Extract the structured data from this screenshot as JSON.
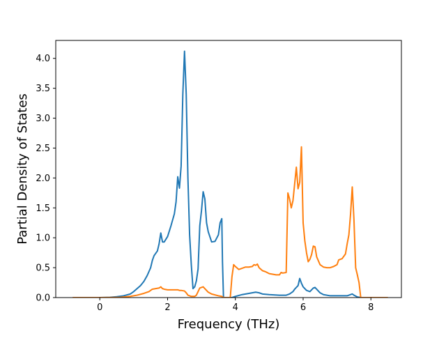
{
  "chart_data": {
    "type": "line",
    "title": "",
    "xlabel": "Frequency (THz)",
    "ylabel": "Partial Density of States",
    "xlim": [
      -1.3,
      8.9
    ],
    "ylim": [
      0,
      4.3
    ],
    "xticks": [
      0,
      2,
      4,
      6,
      8
    ],
    "yticks": [
      0.0,
      0.5,
      1.0,
      1.5,
      2.0,
      2.5,
      3.0,
      3.5,
      4.0
    ],
    "xtick_labels": [
      "0",
      "2",
      "4",
      "6",
      "8"
    ],
    "ytick_labels": [
      "0.0",
      "0.5",
      "1.0",
      "1.5",
      "2.0",
      "2.5",
      "3.0",
      "3.5",
      "4.0"
    ],
    "grid": false,
    "legend": null,
    "series": [
      {
        "color": "#1f77b4",
        "points": [
          [
            -0.8,
            0.0
          ],
          [
            0.0,
            0.0
          ],
          [
            0.3,
            0.005
          ],
          [
            0.5,
            0.015
          ],
          [
            0.7,
            0.03
          ],
          [
            0.9,
            0.06
          ],
          [
            1.0,
            0.1
          ],
          [
            1.1,
            0.15
          ],
          [
            1.2,
            0.2
          ],
          [
            1.3,
            0.27
          ],
          [
            1.4,
            0.37
          ],
          [
            1.5,
            0.5
          ],
          [
            1.55,
            0.62
          ],
          [
            1.6,
            0.7
          ],
          [
            1.7,
            0.78
          ],
          [
            1.75,
            0.9
          ],
          [
            1.8,
            1.08
          ],
          [
            1.85,
            0.93
          ],
          [
            1.9,
            0.93
          ],
          [
            2.0,
            1.02
          ],
          [
            2.1,
            1.2
          ],
          [
            2.2,
            1.4
          ],
          [
            2.25,
            1.6
          ],
          [
            2.3,
            2.02
          ],
          [
            2.35,
            1.83
          ],
          [
            2.4,
            2.2
          ],
          [
            2.45,
            3.4
          ],
          [
            2.5,
            4.12
          ],
          [
            2.55,
            3.4
          ],
          [
            2.6,
            2.0
          ],
          [
            2.65,
            1.05
          ],
          [
            2.7,
            0.55
          ],
          [
            2.75,
            0.15
          ],
          [
            2.8,
            0.18
          ],
          [
            2.85,
            0.28
          ],
          [
            2.9,
            0.48
          ],
          [
            2.95,
            1.2
          ],
          [
            3.0,
            1.45
          ],
          [
            3.05,
            1.77
          ],
          [
            3.1,
            1.65
          ],
          [
            3.15,
            1.25
          ],
          [
            3.2,
            1.1
          ],
          [
            3.3,
            0.93
          ],
          [
            3.4,
            0.94
          ],
          [
            3.5,
            1.05
          ],
          [
            3.55,
            1.25
          ],
          [
            3.6,
            1.32
          ],
          [
            3.62,
            0.6
          ],
          [
            3.65,
            0.0
          ],
          [
            3.9,
            0.0
          ],
          [
            4.0,
            0.02
          ],
          [
            4.2,
            0.05
          ],
          [
            4.4,
            0.07
          ],
          [
            4.6,
            0.09
          ],
          [
            4.7,
            0.08
          ],
          [
            4.8,
            0.06
          ],
          [
            5.0,
            0.05
          ],
          [
            5.3,
            0.04
          ],
          [
            5.5,
            0.04
          ],
          [
            5.6,
            0.06
          ],
          [
            5.7,
            0.1
          ],
          [
            5.75,
            0.14
          ],
          [
            5.85,
            0.2
          ],
          [
            5.9,
            0.32
          ],
          [
            5.95,
            0.24
          ],
          [
            6.0,
            0.18
          ],
          [
            6.1,
            0.12
          ],
          [
            6.2,
            0.1
          ],
          [
            6.3,
            0.16
          ],
          [
            6.35,
            0.17
          ],
          [
            6.5,
            0.08
          ],
          [
            6.6,
            0.05
          ],
          [
            6.8,
            0.03
          ],
          [
            7.0,
            0.03
          ],
          [
            7.3,
            0.03
          ],
          [
            7.45,
            0.06
          ],
          [
            7.5,
            0.04
          ],
          [
            7.6,
            0.01
          ],
          [
            7.7,
            0.0
          ],
          [
            8.5,
            0.0
          ]
        ]
      },
      {
        "color": "#ff7f0e",
        "points": [
          [
            -0.8,
            0.0
          ],
          [
            0.0,
            0.0
          ],
          [
            0.3,
            0.002
          ],
          [
            0.6,
            0.005
          ],
          [
            0.9,
            0.02
          ],
          [
            1.1,
            0.04
          ],
          [
            1.3,
            0.07
          ],
          [
            1.45,
            0.1
          ],
          [
            1.55,
            0.14
          ],
          [
            1.65,
            0.15
          ],
          [
            1.75,
            0.16
          ],
          [
            1.8,
            0.18
          ],
          [
            1.85,
            0.15
          ],
          [
            1.9,
            0.14
          ],
          [
            2.0,
            0.13
          ],
          [
            2.2,
            0.13
          ],
          [
            2.3,
            0.13
          ],
          [
            2.35,
            0.12
          ],
          [
            2.4,
            0.12
          ],
          [
            2.5,
            0.11
          ],
          [
            2.55,
            0.08
          ],
          [
            2.6,
            0.04
          ],
          [
            2.7,
            0.02
          ],
          [
            2.8,
            0.02
          ],
          [
            2.85,
            0.04
          ],
          [
            2.9,
            0.1
          ],
          [
            2.95,
            0.16
          ],
          [
            3.0,
            0.17
          ],
          [
            3.05,
            0.18
          ],
          [
            3.1,
            0.15
          ],
          [
            3.2,
            0.09
          ],
          [
            3.3,
            0.06
          ],
          [
            3.5,
            0.03
          ],
          [
            3.6,
            0.02
          ],
          [
            3.65,
            0.0
          ],
          [
            3.85,
            0.0
          ],
          [
            3.9,
            0.35
          ],
          [
            3.95,
            0.55
          ],
          [
            4.0,
            0.52
          ],
          [
            4.1,
            0.47
          ],
          [
            4.2,
            0.49
          ],
          [
            4.3,
            0.51
          ],
          [
            4.4,
            0.51
          ],
          [
            4.5,
            0.52
          ],
          [
            4.55,
            0.55
          ],
          [
            4.6,
            0.54
          ],
          [
            4.65,
            0.56
          ],
          [
            4.7,
            0.5
          ],
          [
            4.8,
            0.45
          ],
          [
            4.9,
            0.43
          ],
          [
            5.0,
            0.4
          ],
          [
            5.1,
            0.39
          ],
          [
            5.2,
            0.38
          ],
          [
            5.3,
            0.38
          ],
          [
            5.35,
            0.42
          ],
          [
            5.4,
            0.41
          ],
          [
            5.5,
            0.42
          ],
          [
            5.55,
            1.75
          ],
          [
            5.6,
            1.65
          ],
          [
            5.65,
            1.5
          ],
          [
            5.7,
            1.62
          ],
          [
            5.75,
            1.9
          ],
          [
            5.8,
            2.18
          ],
          [
            5.85,
            1.82
          ],
          [
            5.9,
            1.93
          ],
          [
            5.95,
            2.52
          ],
          [
            6.0,
            1.25
          ],
          [
            6.05,
            0.95
          ],
          [
            6.1,
            0.75
          ],
          [
            6.15,
            0.6
          ],
          [
            6.2,
            0.64
          ],
          [
            6.25,
            0.72
          ],
          [
            6.3,
            0.86
          ],
          [
            6.35,
            0.85
          ],
          [
            6.4,
            0.68
          ],
          [
            6.5,
            0.55
          ],
          [
            6.6,
            0.51
          ],
          [
            6.7,
            0.5
          ],
          [
            6.8,
            0.5
          ],
          [
            6.9,
            0.52
          ],
          [
            7.0,
            0.55
          ],
          [
            7.05,
            0.63
          ],
          [
            7.15,
            0.65
          ],
          [
            7.25,
            0.73
          ],
          [
            7.3,
            0.9
          ],
          [
            7.35,
            1.05
          ],
          [
            7.4,
            1.4
          ],
          [
            7.45,
            1.85
          ],
          [
            7.5,
            1.3
          ],
          [
            7.55,
            0.5
          ],
          [
            7.6,
            0.38
          ],
          [
            7.65,
            0.25
          ],
          [
            7.7,
            0.0
          ],
          [
            8.5,
            0.0
          ]
        ]
      }
    ]
  }
}
